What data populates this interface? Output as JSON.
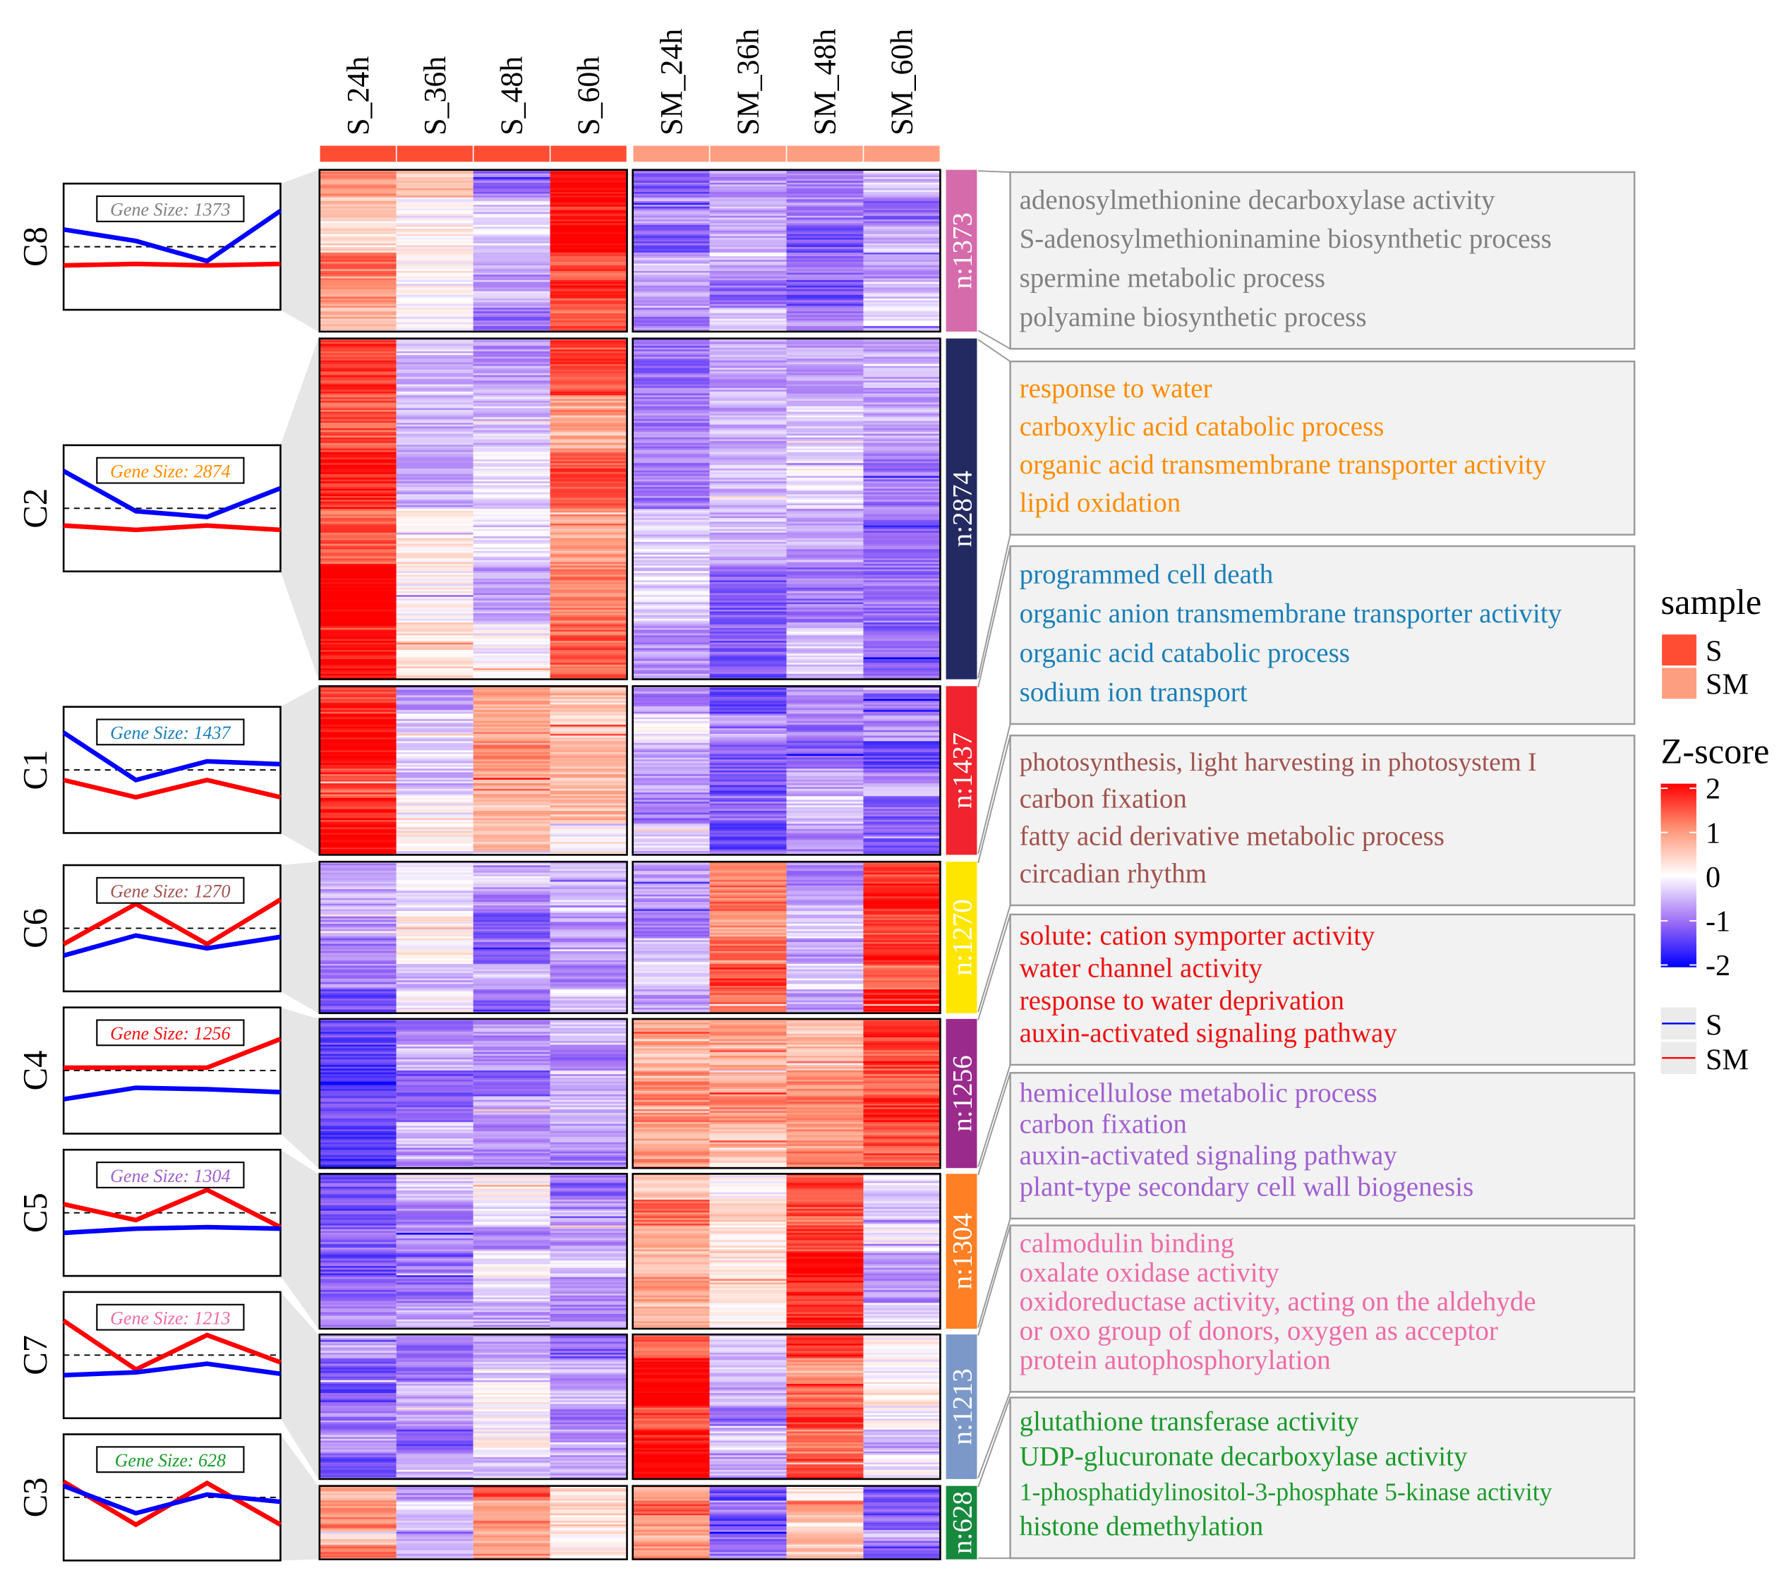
{
  "chart_data": {
    "type": "heatmap",
    "columns": [
      "S_24h",
      "S_36h",
      "S_48h",
      "S_60h",
      "SM_24h",
      "SM_36h",
      "SM_48h",
      "SM_60h"
    ],
    "column_groups": [
      "S",
      "S",
      "S",
      "S",
      "SM",
      "SM",
      "SM",
      "SM"
    ],
    "color_scale": {
      "min": -2,
      "max": 2,
      "stops": [
        {
          "value": -2,
          "color": "#0000ff"
        },
        {
          "value": -1,
          "color": "#a06ef5"
        },
        {
          "value": 0,
          "color": "#ffffff"
        },
        {
          "value": 1,
          "color": "#ff9678"
        },
        {
          "value": 2,
          "color": "#ff0000"
        }
      ]
    },
    "clusters": [
      {
        "id": "C8",
        "n_label": "n:1373",
        "gene_size": "Gene Size: 1373",
        "bar_color": "#d66bab",
        "text_color": "#808080",
        "col_mean_z": [
          0.8,
          0.4,
          -0.6,
          1.8,
          -0.8,
          -0.6,
          -0.8,
          -0.7
        ],
        "trend_S": [
          0.6,
          0.2,
          -0.5,
          1.25
        ],
        "trend_SM": [
          -0.65,
          -0.6,
          -0.65,
          -0.6
        ],
        "terms": [
          "adenosylmethionine decarboxylase activity",
          "S-adenosylmethioninamine biosynthetic process",
          "spermine metabolic process",
          "polyamine biosynthetic process"
        ]
      },
      {
        "id": "C2",
        "n_label": "n:2874",
        "gene_size": "Gene Size: 2874",
        "bar_color": "#232a61",
        "text_color": "#ff8c00",
        "col_mean_z": [
          1.8,
          -0.1,
          -0.3,
          1.2,
          -0.6,
          -0.9,
          -0.7,
          -0.9
        ],
        "trend_S": [
          1.3,
          -0.1,
          -0.3,
          0.7
        ],
        "trend_SM": [
          -0.6,
          -0.75,
          -0.6,
          -0.75
        ],
        "terms": [
          "response to water",
          "carboxylic acid catabolic process",
          "organic acid transmembrane transporter activity",
          "lipid oxidation"
        ]
      },
      {
        "id": "C1",
        "n_label": "n:1437",
        "gene_size": "Gene Size: 1437",
        "bar_color": "#f0232e",
        "text_color": "#1a7fb8",
        "col_mean_z": [
          1.8,
          -0.3,
          0.8,
          0.5,
          -0.6,
          -1.1,
          -0.8,
          -1.0
        ],
        "trend_S": [
          1.3,
          -0.35,
          0.3,
          0.2
        ],
        "trend_SM": [
          -0.35,
          -0.95,
          -0.35,
          -0.95
        ],
        "terms": [
          "programmed cell death",
          "organic anion transmembrane transporter activity",
          "organic acid catabolic process",
          "sodium ion transport"
        ]
      },
      {
        "id": "C6",
        "n_label": "n:1270",
        "gene_size": "Gene Size: 1270",
        "bar_color": "#ffe600",
        "text_color": "#a0524d",
        "col_mean_z": [
          -0.9,
          -0.3,
          -0.8,
          -0.4,
          -0.6,
          1.3,
          -0.6,
          1.6
        ],
        "trend_S": [
          -0.95,
          -0.25,
          -0.7,
          -0.3
        ],
        "trend_SM": [
          -0.55,
          0.85,
          -0.55,
          1.0
        ],
        "terms": [
          "photosynthesis, light harvesting in photosystem I",
          "carbon fixation",
          "fatty acid derivative metabolic process",
          "circadian rhythm"
        ]
      },
      {
        "id": "C4",
        "n_label": "n:1256",
        "gene_size": "Gene Size: 1256",
        "bar_color": "#9a2a8c",
        "text_color": "#ee1111",
        "col_mean_z": [
          -1.2,
          -0.8,
          -0.8,
          -0.8,
          1.0,
          0.8,
          0.9,
          1.7
        ],
        "trend_S": [
          -1.0,
          -0.6,
          -0.65,
          -0.75
        ],
        "trend_SM": [
          0.1,
          0.1,
          0.1,
          1.1
        ],
        "terms": [
          "solute: cation symporter activity",
          "water channel activity",
          "response to water deprivation",
          "auxin-activated signaling pathway"
        ]
      },
      {
        "id": "C5",
        "n_label": "n:1304",
        "gene_size": "Gene Size: 1304",
        "bar_color": "#ff7f24",
        "text_color": "#a060d0",
        "col_mean_z": [
          -0.9,
          -0.6,
          -0.4,
          -0.6,
          0.9,
          0.4,
          1.9,
          -0.4
        ],
        "trend_S": [
          -0.7,
          -0.55,
          -0.5,
          -0.55
        ],
        "trend_SM": [
          0.3,
          -0.25,
          0.8,
          -0.5
        ],
        "terms": [
          "hemicellulose metabolic process",
          "carbon fixation",
          "auxin-activated signaling pathway",
          "plant-type secondary cell wall biogenesis"
        ]
      },
      {
        "id": "C7",
        "n_label": "n:1213",
        "gene_size": "Gene Size: 1213",
        "bar_color": "#7b98c8",
        "text_color": "#ee6aa7",
        "col_mean_z": [
          -0.9,
          -0.8,
          -0.3,
          -0.9,
          1.8,
          -0.6,
          1.3,
          -0.2
        ],
        "trend_S": [
          -0.7,
          -0.6,
          -0.3,
          -0.65
        ],
        "trend_SM": [
          1.2,
          -0.5,
          0.7,
          -0.25
        ],
        "terms": [
          "calmodulin binding",
          "oxalate oxidase activity",
          "oxidoreductase activity, acting on the aldehyde",
          "or oxo group of donors, oxygen as acceptor",
          "protein autophosphorylation"
        ]
      },
      {
        "id": "C3",
        "n_label": "n:628",
        "gene_size": "Gene Size: 628",
        "bar_color": "#17893f",
        "text_color": "#1a9a2a",
        "col_mean_z": [
          0.8,
          -0.6,
          1.2,
          0.2,
          1.0,
          -1.1,
          0.7,
          -1.0
        ],
        "trend_S": [
          0.4,
          -0.55,
          0.1,
          -0.15
        ],
        "trend_SM": [
          0.55,
          -0.95,
          0.5,
          -0.95
        ],
        "terms": [
          "glutathione transferase activity",
          "UDP-glucuronate decarboxylase activity",
          "1-phosphatidylinositol-3-phosphate 5-kinase activity",
          "histone demethylation"
        ]
      }
    ],
    "legend": {
      "sample_title": "sample",
      "sample_items": [
        {
          "label": "S",
          "color": "#ff4d33"
        },
        {
          "label": "SM",
          "color": "#fe9e80"
        }
      ],
      "zscore_title": "Z-score",
      "zscore_ticks": [
        "2",
        "1",
        "0",
        "-1",
        "-2"
      ],
      "line_items": [
        {
          "label": "S",
          "color": "#0000ff"
        },
        {
          "label": "SM",
          "color": "#ff0000"
        }
      ]
    }
  }
}
